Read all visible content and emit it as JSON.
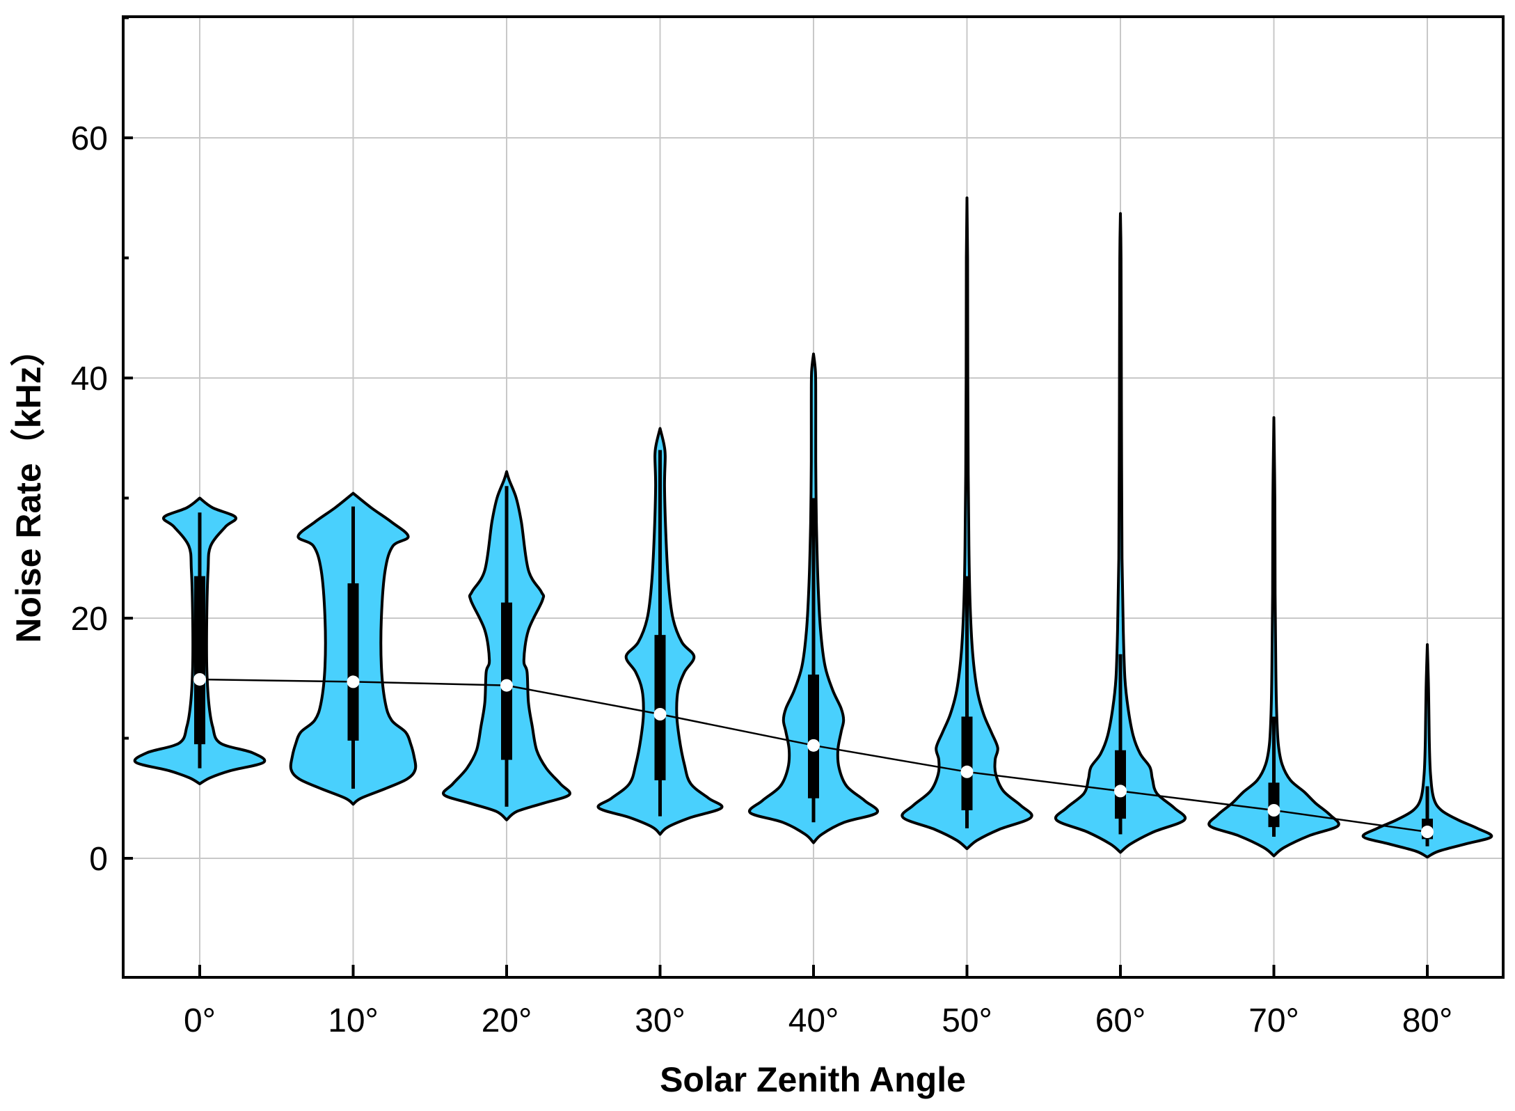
{
  "chart_data": {
    "type": "violin",
    "title": "",
    "xlabel": "Solar Zenith Angle",
    "ylabel": "Noise Rate（kHz）",
    "ylim": [
      -10,
      70
    ],
    "yticks": [
      0,
      20,
      40,
      60
    ],
    "categories": [
      "0°",
      "10°",
      "20°",
      "30°",
      "40°",
      "50°",
      "60°",
      "70°",
      "80°"
    ],
    "fill_color": "#49d0fd",
    "grid": true,
    "series": [
      {
        "category": "0°",
        "min": 6.2,
        "whisker_low": 7.5,
        "q1": 9.5,
        "median": 14.9,
        "q3": 23.5,
        "whisker_high": 28.8,
        "max": 30.0,
        "density": [
          [
            6.2,
            0
          ],
          [
            6.7,
            0.16
          ],
          [
            7.3,
            0.48
          ],
          [
            8.0,
            1.0
          ],
          [
            8.8,
            0.82
          ],
          [
            9.6,
            0.32
          ],
          [
            11,
            0.2
          ],
          [
            13,
            0.14
          ],
          [
            16,
            0.11
          ],
          [
            20,
            0.11
          ],
          [
            24,
            0.13
          ],
          [
            26,
            0.17
          ],
          [
            27.6,
            0.4
          ],
          [
            28.4,
            0.56
          ],
          [
            29.2,
            0.2
          ],
          [
            30.0,
            0
          ]
        ]
      },
      {
        "category": "10°",
        "min": 4.5,
        "whisker_low": 5.8,
        "q1": 9.8,
        "median": 14.7,
        "q3": 22.9,
        "whisker_high": 29.3,
        "max": 30.4,
        "density": [
          [
            4.5,
            0
          ],
          [
            5.0,
            0.12
          ],
          [
            5.8,
            0.5
          ],
          [
            6.6,
            0.84
          ],
          [
            7.4,
            0.97
          ],
          [
            8.5,
            0.95
          ],
          [
            9.5,
            0.9
          ],
          [
            10.5,
            0.82
          ],
          [
            11.5,
            0.6
          ],
          [
            13,
            0.5
          ],
          [
            16,
            0.44
          ],
          [
            20,
            0.44
          ],
          [
            24,
            0.5
          ],
          [
            26,
            0.62
          ],
          [
            26.8,
            0.86
          ],
          [
            28,
            0.6
          ],
          [
            29.2,
            0.28
          ],
          [
            30.4,
            0
          ]
        ]
      },
      {
        "category": "20°",
        "min": 3.2,
        "whisker_low": 4.3,
        "q1": 8.2,
        "median": 14.4,
        "q3": 21.3,
        "whisker_high": 31.0,
        "max": 32.2,
        "density": [
          [
            3.2,
            0
          ],
          [
            3.9,
            0.16
          ],
          [
            4.6,
            0.58
          ],
          [
            5.3,
            0.98
          ],
          [
            6.2,
            0.84
          ],
          [
            7.5,
            0.62
          ],
          [
            9,
            0.47
          ],
          [
            11,
            0.4
          ],
          [
            13,
            0.34
          ],
          [
            15.5,
            0.32
          ],
          [
            16.5,
            0.27
          ],
          [
            19,
            0.34
          ],
          [
            21.5,
            0.56
          ],
          [
            22.2,
            0.54
          ],
          [
            24,
            0.34
          ],
          [
            28,
            0.23
          ],
          [
            30,
            0.15
          ],
          [
            31.5,
            0.04
          ],
          [
            32.2,
            0
          ]
        ]
      },
      {
        "category": "30°",
        "min": 2.0,
        "whisker_low": 3.5,
        "q1": 6.5,
        "median": 12.0,
        "q3": 18.6,
        "whisker_high": 34.0,
        "max": 35.8,
        "density": [
          [
            2.0,
            0
          ],
          [
            2.6,
            0.12
          ],
          [
            3.4,
            0.48
          ],
          [
            4.2,
            0.96
          ],
          [
            5.0,
            0.76
          ],
          [
            6.2,
            0.48
          ],
          [
            7.8,
            0.38
          ],
          [
            10,
            0.3
          ],
          [
            12,
            0.26
          ],
          [
            14,
            0.28
          ],
          [
            15.5,
            0.38
          ],
          [
            16.8,
            0.53
          ],
          [
            18,
            0.34
          ],
          [
            20,
            0.2
          ],
          [
            23,
            0.13
          ],
          [
            27,
            0.09
          ],
          [
            31,
            0.07
          ],
          [
            33.5,
            0.08
          ],
          [
            34.5,
            0.06
          ],
          [
            35.8,
            0
          ]
        ]
      },
      {
        "category": "40°",
        "min": 1.3,
        "whisker_low": 3.0,
        "q1": 5.0,
        "median": 9.4,
        "q3": 15.3,
        "whisker_high": 30.0,
        "max": 42.0,
        "density": [
          [
            1.3,
            0
          ],
          [
            2.0,
            0.13
          ],
          [
            3.0,
            0.48
          ],
          [
            3.8,
            0.99
          ],
          [
            4.8,
            0.8
          ],
          [
            6,
            0.52
          ],
          [
            7.5,
            0.4
          ],
          [
            9,
            0.38
          ],
          [
            10.5,
            0.43
          ],
          [
            11.5,
            0.47
          ],
          [
            12.5,
            0.43
          ],
          [
            14,
            0.3
          ],
          [
            16,
            0.18
          ],
          [
            19,
            0.11
          ],
          [
            23,
            0.07
          ],
          [
            28,
            0.045
          ],
          [
            33,
            0.035
          ],
          [
            38,
            0.035
          ],
          [
            40.5,
            0.03
          ],
          [
            42.0,
            0
          ]
        ]
      },
      {
        "category": "50°",
        "min": 0.8,
        "whisker_low": 2.5,
        "q1": 4.0,
        "median": 7.2,
        "q3": 11.8,
        "whisker_high": 23.5,
        "max": 55.0,
        "density": [
          [
            0.8,
            0
          ],
          [
            1.5,
            0.16
          ],
          [
            2.4,
            0.5
          ],
          [
            3.4,
            1.0
          ],
          [
            4.4,
            0.84
          ],
          [
            5.6,
            0.57
          ],
          [
            7,
            0.45
          ],
          [
            8.2,
            0.44
          ],
          [
            9.2,
            0.48
          ],
          [
            10.5,
            0.38
          ],
          [
            12,
            0.26
          ],
          [
            14,
            0.16
          ],
          [
            17,
            0.09
          ],
          [
            21,
            0.05
          ],
          [
            26,
            0.03
          ],
          [
            32,
            0.02
          ],
          [
            40,
            0.013
          ],
          [
            50,
            0.01
          ],
          [
            55,
            0
          ]
        ]
      },
      {
        "category": "60°",
        "min": 0.5,
        "whisker_low": 2.0,
        "q1": 3.3,
        "median": 5.6,
        "q3": 9.0,
        "whisker_high": 17.0,
        "max": 53.7,
        "density": [
          [
            0.5,
            0
          ],
          [
            1.2,
            0.16
          ],
          [
            2.2,
            0.52
          ],
          [
            3.2,
            1.0
          ],
          [
            4.2,
            0.84
          ],
          [
            5.4,
            0.57
          ],
          [
            6.6,
            0.5
          ],
          [
            7.6,
            0.46
          ],
          [
            8.7,
            0.31
          ],
          [
            10.2,
            0.2
          ],
          [
            12.5,
            0.12
          ],
          [
            15,
            0.07
          ],
          [
            19,
            0.045
          ],
          [
            25,
            0.025
          ],
          [
            33,
            0.018
          ],
          [
            42,
            0.014
          ],
          [
            50,
            0.01
          ],
          [
            53.7,
            0
          ]
        ]
      },
      {
        "category": "70°",
        "min": 0.2,
        "whisker_low": 1.8,
        "q1": 2.6,
        "median": 4.0,
        "q3": 6.3,
        "whisker_high": 11.8,
        "max": 36.7,
        "density": [
          [
            0.2,
            0
          ],
          [
            0.9,
            0.16
          ],
          [
            1.9,
            0.56
          ],
          [
            2.7,
            1.0
          ],
          [
            3.6,
            0.88
          ],
          [
            4.6,
            0.65
          ],
          [
            5.5,
            0.48
          ],
          [
            6.5,
            0.26
          ],
          [
            7.8,
            0.13
          ],
          [
            9.5,
            0.07
          ],
          [
            12,
            0.045
          ],
          [
            16,
            0.03
          ],
          [
            22,
            0.02
          ],
          [
            30,
            0.015
          ],
          [
            36.7,
            0
          ]
        ]
      },
      {
        "category": "80°",
        "min": 0.1,
        "whisker_low": 1.0,
        "q1": 1.6,
        "median": 2.2,
        "q3": 3.3,
        "whisker_high": 6.0,
        "max": 17.8,
        "density": [
          [
            0.1,
            0
          ],
          [
            0.6,
            0.18
          ],
          [
            1.2,
            0.6
          ],
          [
            1.8,
            1.0
          ],
          [
            2.5,
            0.78
          ],
          [
            3.2,
            0.48
          ],
          [
            4.0,
            0.22
          ],
          [
            5,
            0.1
          ],
          [
            7,
            0.05
          ],
          [
            10,
            0.03
          ],
          [
            14,
            0.02
          ],
          [
            17.8,
            0
          ]
        ]
      }
    ],
    "mean_line": [
      14.9,
      14.7,
      14.4,
      12.0,
      9.4,
      7.2,
      5.6,
      4.0,
      2.2
    ]
  }
}
